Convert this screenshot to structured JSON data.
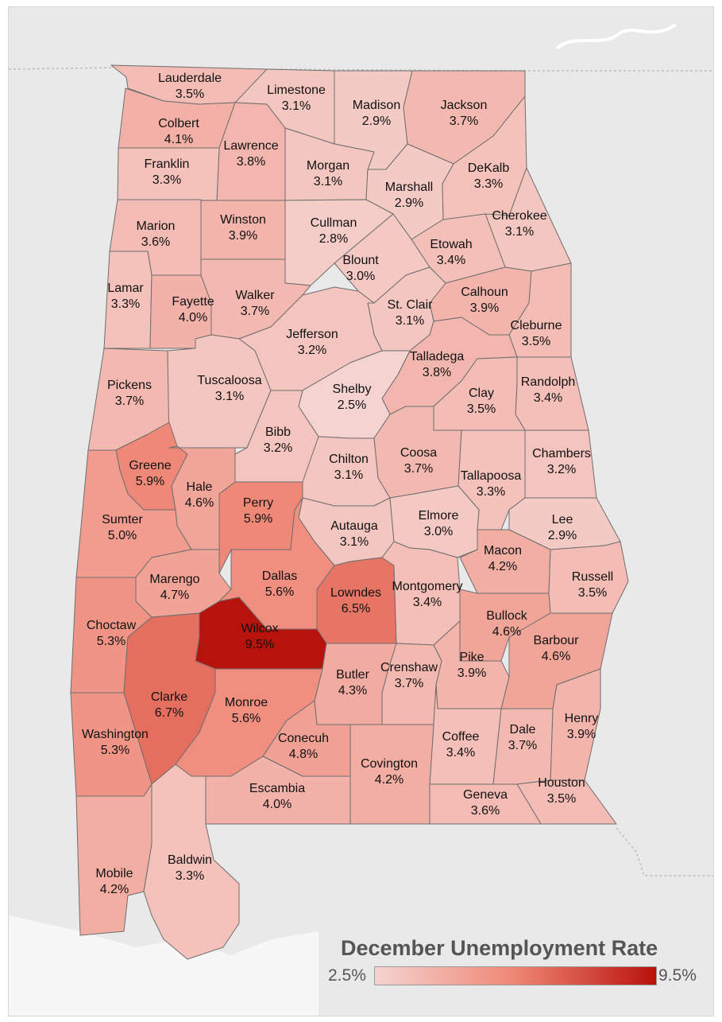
{
  "legend": {
    "title": "December Unemployment Rate",
    "min_label": "2.5%",
    "max_label": "9.5%",
    "min_value": 2.5,
    "max_value": 9.5,
    "color_low": "#f5d3d0",
    "color_high": "#b8120c"
  },
  "colors": {
    "land": "#e9e9e9",
    "border": "#6e6e6e"
  },
  "counties": [
    {
      "name": "Lauderdale",
      "rate": "3.5%",
      "value": 3.5
    },
    {
      "name": "Limestone",
      "rate": "3.1%",
      "value": 3.1
    },
    {
      "name": "Madison",
      "rate": "2.9%",
      "value": 2.9
    },
    {
      "name": "Jackson",
      "rate": "3.7%",
      "value": 3.7
    },
    {
      "name": "Colbert",
      "rate": "4.1%",
      "value": 4.1
    },
    {
      "name": "Lawrence",
      "rate": "3.8%",
      "value": 3.8
    },
    {
      "name": "Morgan",
      "rate": "3.1%",
      "value": 3.1
    },
    {
      "name": "Marshall",
      "rate": "2.9%",
      "value": 2.9
    },
    {
      "name": "DeKalb",
      "rate": "3.3%",
      "value": 3.3
    },
    {
      "name": "Franklin",
      "rate": "3.3%",
      "value": 3.3
    },
    {
      "name": "Marion",
      "rate": "3.6%",
      "value": 3.6
    },
    {
      "name": "Winston",
      "rate": "3.9%",
      "value": 3.9
    },
    {
      "name": "Cullman",
      "rate": "2.8%",
      "value": 2.8
    },
    {
      "name": "Cherokee",
      "rate": "3.1%",
      "value": 3.1
    },
    {
      "name": "Etowah",
      "rate": "3.4%",
      "value": 3.4
    },
    {
      "name": "Blount",
      "rate": "3.0%",
      "value": 3.0
    },
    {
      "name": "Lamar",
      "rate": "3.3%",
      "value": 3.3
    },
    {
      "name": "Fayette",
      "rate": "4.0%",
      "value": 4.0
    },
    {
      "name": "Walker",
      "rate": "3.7%",
      "value": 3.7
    },
    {
      "name": "Calhoun",
      "rate": "3.9%",
      "value": 3.9
    },
    {
      "name": "St. Clair",
      "rate": "3.1%",
      "value": 3.1
    },
    {
      "name": "Jefferson",
      "rate": "3.2%",
      "value": 3.2
    },
    {
      "name": "Cleburne",
      "rate": "3.5%",
      "value": 3.5
    },
    {
      "name": "Talladega",
      "rate": "3.8%",
      "value": 3.8
    },
    {
      "name": "Pickens",
      "rate": "3.7%",
      "value": 3.7
    },
    {
      "name": "Tuscaloosa",
      "rate": "3.1%",
      "value": 3.1
    },
    {
      "name": "Shelby",
      "rate": "2.5%",
      "value": 2.5
    },
    {
      "name": "Randolph",
      "rate": "3.4%",
      "value": 3.4
    },
    {
      "name": "Clay",
      "rate": "3.5%",
      "value": 3.5
    },
    {
      "name": "Bibb",
      "rate": "3.2%",
      "value": 3.2
    },
    {
      "name": "Greene",
      "rate": "5.9%",
      "value": 5.9
    },
    {
      "name": "Hale",
      "rate": "4.6%",
      "value": 4.6
    },
    {
      "name": "Chilton",
      "rate": "3.1%",
      "value": 3.1
    },
    {
      "name": "Coosa",
      "rate": "3.7%",
      "value": 3.7
    },
    {
      "name": "Chambers",
      "rate": "3.2%",
      "value": 3.2
    },
    {
      "name": "Tallapoosa",
      "rate": "3.3%",
      "value": 3.3
    },
    {
      "name": "Perry",
      "rate": "5.9%",
      "value": 5.9
    },
    {
      "name": "Sumter",
      "rate": "5.0%",
      "value": 5.0
    },
    {
      "name": "Autauga",
      "rate": "3.1%",
      "value": 3.1
    },
    {
      "name": "Elmore",
      "rate": "3.0%",
      "value": 3.0
    },
    {
      "name": "Lee",
      "rate": "2.9%",
      "value": 2.9
    },
    {
      "name": "Macon",
      "rate": "4.2%",
      "value": 4.2
    },
    {
      "name": "Marengo",
      "rate": "4.7%",
      "value": 4.7
    },
    {
      "name": "Dallas",
      "rate": "5.6%",
      "value": 5.6
    },
    {
      "name": "Lowndes",
      "rate": "6.5%",
      "value": 6.5
    },
    {
      "name": "Montgomery",
      "rate": "3.4%",
      "value": 3.4
    },
    {
      "name": "Russell",
      "rate": "3.5%",
      "value": 3.5
    },
    {
      "name": "Bullock",
      "rate": "4.6%",
      "value": 4.6
    },
    {
      "name": "Choctaw",
      "rate": "5.3%",
      "value": 5.3
    },
    {
      "name": "Wilcox",
      "rate": "9.5%",
      "value": 9.5
    },
    {
      "name": "Barbour",
      "rate": "4.6%",
      "value": 4.6
    },
    {
      "name": "Crenshaw",
      "rate": "3.7%",
      "value": 3.7
    },
    {
      "name": "Pike",
      "rate": "3.9%",
      "value": 3.9
    },
    {
      "name": "Butler",
      "rate": "4.3%",
      "value": 4.3
    },
    {
      "name": "Clarke",
      "rate": "6.7%",
      "value": 6.7
    },
    {
      "name": "Monroe",
      "rate": "5.6%",
      "value": 5.6
    },
    {
      "name": "Henry",
      "rate": "3.9%",
      "value": 3.9
    },
    {
      "name": "Washington",
      "rate": "5.3%",
      "value": 5.3
    },
    {
      "name": "Conecuh",
      "rate": "4.8%",
      "value": 4.8
    },
    {
      "name": "Coffee",
      "rate": "3.4%",
      "value": 3.4
    },
    {
      "name": "Dale",
      "rate": "3.7%",
      "value": 3.7
    },
    {
      "name": "Covington",
      "rate": "4.2%",
      "value": 4.2
    },
    {
      "name": "Houston",
      "rate": "3.5%",
      "value": 3.5
    },
    {
      "name": "Escambia",
      "rate": "4.0%",
      "value": 4.0
    },
    {
      "name": "Geneva",
      "rate": "3.6%",
      "value": 3.6
    },
    {
      "name": "Baldwin",
      "rate": "3.3%",
      "value": 3.3
    },
    {
      "name": "Mobile",
      "rate": "4.2%",
      "value": 4.2
    }
  ]
}
